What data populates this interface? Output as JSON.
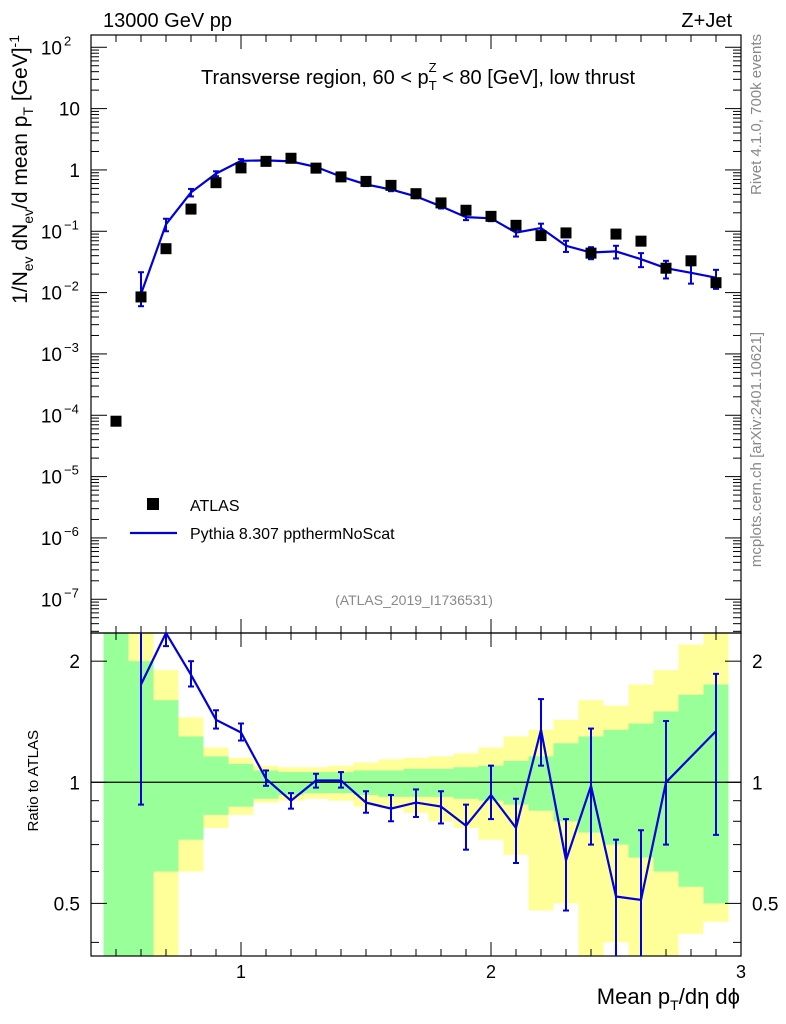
{
  "header": {
    "left": "13000 GeV pp",
    "right": "Z+Jet"
  },
  "side_labels": {
    "rivet": "Rivet 4.1.0,  700k events",
    "mcplots": "mcplots.cern.ch [arXiv:2401.10621]"
  },
  "chart_data": {
    "type": "scatter",
    "title": "Transverse region, 60 < p_T^Z < 80 [GeV], low thrust",
    "title_parts": {
      "pre": "Transverse region, 60 < p",
      "sup": "Z",
      "sub": "T",
      "post": " < 80 [GeV], low thrust"
    },
    "analysis_id": "(ATLAS_2019_I1736531)",
    "xlabel": "Mean p_T/dη dϕ",
    "xlabel_parts": {
      "pre": "Mean p",
      "sub": "T",
      "post": "/dη dϕ"
    },
    "ylabel": "1/N_ev dN_ev/d mean p_T [GeV]^-1",
    "ylabel_parts": {
      "a": "1/N",
      "a_sub": "ev",
      "b": " dN",
      "b_sub": "ev",
      "c": "/d mean p",
      "c_sub": "T",
      "d": " [GeV]",
      "d_sup": "-1"
    },
    "ratio_ylabel": "Ratio to ATLAS",
    "xlim": [
      0.4,
      3.0
    ],
    "ylim_log": [
      -7.55,
      2.2
    ],
    "ratio_ylim": [
      0.37,
      2.35
    ],
    "x_ticks": [
      {
        "v": 1,
        "label": "1"
      },
      {
        "v": 2,
        "label": "2"
      },
      {
        "v": 3,
        "label": "3"
      }
    ],
    "y_ticks": [
      {
        "e": 2,
        "label": "10",
        "sup": "2"
      },
      {
        "e": 1,
        "label": "10",
        "sup": ""
      },
      {
        "e": 0,
        "label": "1",
        "sup": ""
      },
      {
        "e": -1,
        "label": "10",
        "sup": "−1"
      },
      {
        "e": -2,
        "label": "10",
        "sup": "−2"
      },
      {
        "e": -3,
        "label": "10",
        "sup": "−3"
      },
      {
        "e": -4,
        "label": "10",
        "sup": "−4"
      },
      {
        "e": -5,
        "label": "10",
        "sup": "−5"
      },
      {
        "e": -6,
        "label": "10",
        "sup": "−6"
      },
      {
        "e": -7,
        "label": "10",
        "sup": "−7"
      }
    ],
    "ratio_ticks": [
      {
        "v": 0.5,
        "label": "0.5"
      },
      {
        "v": 1,
        "label": "1"
      },
      {
        "v": 2,
        "label": "2"
      }
    ],
    "legend": [
      {
        "name": "ATLAS",
        "style": "marker"
      },
      {
        "name": "Pythia 8.307 ppthermNoScat",
        "style": "line"
      }
    ],
    "atlas": {
      "name": "ATLAS",
      "x": [
        0.5,
        0.6,
        0.7,
        0.8,
        0.9,
        1.0,
        1.1,
        1.2,
        1.3,
        1.4,
        1.5,
        1.6,
        1.7,
        1.8,
        1.9,
        2.0,
        2.1,
        2.2,
        2.3,
        2.4,
        2.5,
        2.6,
        2.7,
        2.8,
        2.9
      ],
      "values": [
        8e-05,
        0.0085,
        0.052,
        0.23,
        0.62,
        1.08,
        1.38,
        1.55,
        1.07,
        0.77,
        0.65,
        0.56,
        0.41,
        0.29,
        0.22,
        0.175,
        0.125,
        0.085,
        0.094,
        0.044,
        0.09,
        0.069,
        0.025,
        0.033,
        0.0145
      ]
    },
    "pythia": {
      "name": "Pythia 8.307 ppthermNoScat",
      "x": [
        0.6,
        0.7,
        0.8,
        0.9,
        1.0,
        1.1,
        1.2,
        1.3,
        1.4,
        1.5,
        1.6,
        1.7,
        1.8,
        1.9,
        2.0,
        2.1,
        2.2,
        2.3,
        2.4,
        2.5,
        2.6,
        2.7,
        2.8,
        2.9
      ],
      "values": [
        0.0095,
        0.13,
        0.43,
        0.87,
        1.41,
        1.43,
        1.38,
        1.12,
        0.78,
        0.58,
        0.48,
        0.37,
        0.255,
        0.17,
        0.163,
        0.095,
        0.113,
        0.058,
        0.045,
        0.047,
        0.035,
        0.025,
        0.021,
        0.0175
      ],
      "err_lo": [
        0.0035,
        0.03,
        0.06,
        0.08,
        0.09,
        0.07,
        0.06,
        0.05,
        0.04,
        0.035,
        0.03,
        0.025,
        0.02,
        0.018,
        0.017,
        0.013,
        0.02,
        0.012,
        0.01,
        0.011,
        0.009,
        0.008,
        0.007,
        0.006
      ],
      "err_hi": [
        0.012,
        0.03,
        0.06,
        0.08,
        0.09,
        0.07,
        0.06,
        0.05,
        0.04,
        0.035,
        0.03,
        0.025,
        0.02,
        0.018,
        0.017,
        0.013,
        0.02,
        0.012,
        0.01,
        0.011,
        0.009,
        0.008,
        0.007,
        0.006
      ]
    },
    "ratio": {
      "x": [
        0.6,
        0.7,
        0.8,
        0.9,
        1.0,
        1.1,
        1.2,
        1.3,
        1.4,
        1.5,
        1.6,
        1.7,
        1.8,
        1.9,
        2.0,
        2.1,
        2.2,
        2.3,
        2.4,
        2.5,
        2.6,
        2.7,
        2.9
      ],
      "values": [
        1.75,
        2.38,
        1.85,
        1.43,
        1.33,
        1.02,
        0.9,
        1.01,
        1.01,
        0.89,
        0.86,
        0.89,
        0.87,
        0.78,
        0.93,
        0.77,
        1.35,
        0.64,
        0.98,
        0.52,
        0.51,
        1.0,
        1.34
      ],
      "err_lo": [
        0.87,
        0.2,
        0.12,
        0.07,
        0.06,
        0.04,
        0.04,
        0.04,
        0.04,
        0.05,
        0.06,
        0.07,
        0.08,
        0.1,
        0.12,
        0.14,
        0.25,
        0.16,
        0.28,
        0.17,
        0.15,
        0.3,
        0.6
      ],
      "err_hi": [
        0.6,
        0.2,
        0.15,
        0.08,
        0.07,
        0.05,
        0.04,
        0.04,
        0.05,
        0.06,
        0.07,
        0.07,
        0.08,
        0.1,
        0.17,
        0.14,
        0.26,
        0.17,
        0.38,
        0.2,
        0.25,
        0.42,
        0.52
      ]
    },
    "bands": {
      "edges": [
        0.45,
        0.55,
        0.65,
        0.75,
        0.85,
        0.95,
        1.05,
        1.15,
        1.25,
        1.35,
        1.45,
        1.55,
        1.65,
        1.75,
        1.85,
        1.95,
        2.05,
        2.15,
        2.25,
        2.35,
        2.45,
        2.55,
        2.65,
        2.75,
        2.85,
        2.95
      ],
      "green_lo": [
        0.37,
        0.37,
        0.6,
        0.72,
        0.83,
        0.87,
        0.91,
        0.93,
        0.94,
        0.94,
        0.93,
        0.92,
        0.92,
        0.92,
        0.91,
        0.9,
        0.88,
        0.85,
        0.8,
        0.75,
        0.7,
        0.65,
        0.6,
        0.55,
        0.5
      ],
      "green_hi": [
        2.35,
        2.0,
        1.6,
        1.3,
        1.16,
        1.11,
        1.07,
        1.06,
        1.06,
        1.06,
        1.07,
        1.07,
        1.08,
        1.08,
        1.09,
        1.1,
        1.13,
        1.16,
        1.25,
        1.3,
        1.35,
        1.4,
        1.5,
        1.65,
        1.75
      ],
      "yellow_lo": [
        0.37,
        0.37,
        0.37,
        0.6,
        0.77,
        0.83,
        0.89,
        0.9,
        0.91,
        0.9,
        0.87,
        0.86,
        0.84,
        0.8,
        0.77,
        0.72,
        0.66,
        0.48,
        0.5,
        0.37,
        0.4,
        0.37,
        0.37,
        0.42,
        0.45
      ],
      "yellow_hi": [
        2.35,
        2.35,
        1.9,
        1.45,
        1.22,
        1.15,
        1.1,
        1.09,
        1.09,
        1.1,
        1.12,
        1.14,
        1.15,
        1.16,
        1.18,
        1.22,
        1.3,
        1.35,
        1.43,
        1.6,
        1.55,
        1.75,
        1.9,
        2.2,
        2.35
      ]
    },
    "colors": {
      "atlas": "#000000",
      "pythia": "#0000dd",
      "green_band": "#99ff99",
      "yellow_band": "#ffff99",
      "title_grey": "#888888"
    }
  }
}
